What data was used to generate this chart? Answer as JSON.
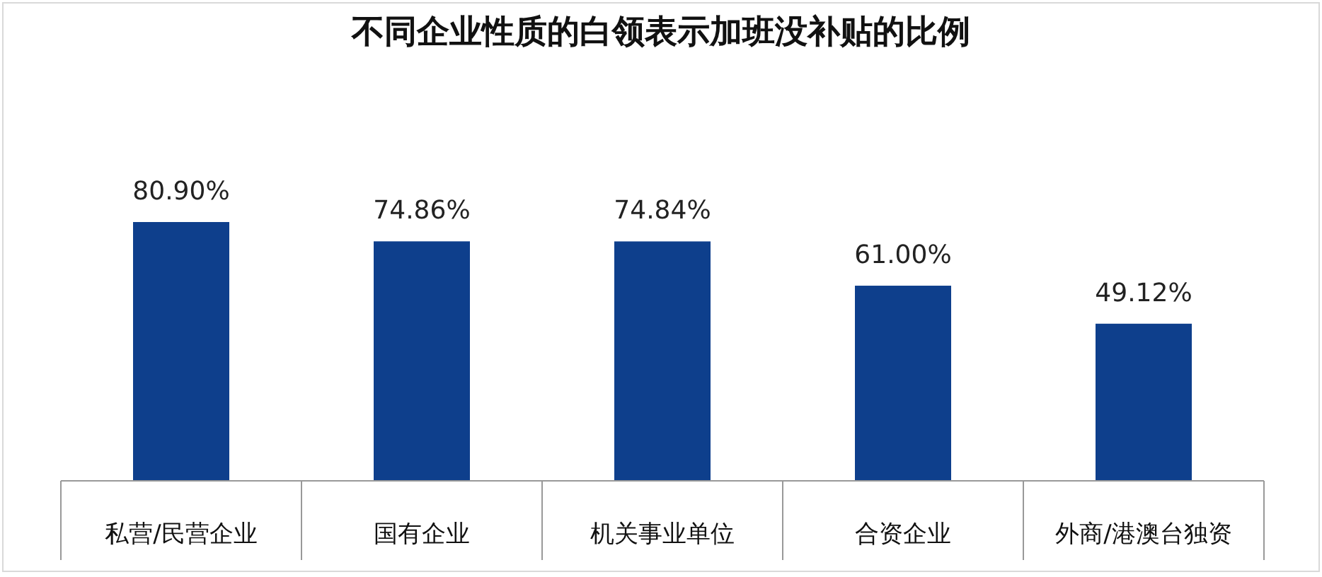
{
  "chart_data": {
    "type": "bar",
    "title": "不同企业性质的白领表示加班没补贴的比例",
    "categories": [
      "私营/民营企业",
      "国有企业",
      "机关事业单位",
      "合资企业",
      "外商/港澳台独资"
    ],
    "values": [
      80.9,
      74.86,
      74.84,
      61.0,
      49.12
    ],
    "value_labels": [
      "80.90%",
      "74.86%",
      "74.84%",
      "61.00%",
      "49.12%"
    ],
    "color": "#0e3f8c",
    "grid": false
  }
}
